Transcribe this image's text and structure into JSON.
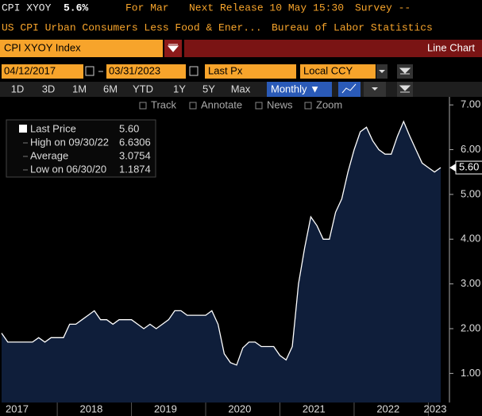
{
  "header": {
    "ticker": "CPI XYOY",
    "last": "5.6%",
    "period": "For Mar",
    "next_release": "Next Release 10 May 15:30",
    "survey": "Survey --",
    "description": "US CPI Urban Consumers Less Food & Ener...",
    "source": "Bureau of Labor Statistics"
  },
  "security": "CPI XYOY Index",
  "view": "Line Chart",
  "controls": {
    "start_date": "04/12/2017",
    "end_date": "03/31/2023",
    "field": "Last Px",
    "currency": "Local CCY",
    "ranges": [
      "1D",
      "3D",
      "1M",
      "6M",
      "YTD",
      "1Y",
      "5Y",
      "Max"
    ],
    "frequency": "Monthly ▼",
    "tools": [
      "Track",
      "Annotate",
      "News",
      "Zoom"
    ]
  },
  "legend_rows": [
    {
      "label": "High on 09/30/22",
      "value": "6.6306"
    },
    {
      "label": "Average",
      "value": "3.0754"
    },
    {
      "label": "Low on 06/30/20",
      "value": "1.1874"
    }
  ],
  "last_value_label": "5.60",
  "chart_data": {
    "type": "area",
    "series": [
      {
        "name": "Last Price",
        "color": "#ffffff",
        "fill": "#0f1e3a",
        "values": [
          1.9,
          1.7,
          1.7,
          1.7,
          1.7,
          1.7,
          1.8,
          1.7,
          1.8,
          1.8,
          1.8,
          2.1,
          2.1,
          2.2,
          2.3,
          2.4,
          2.2,
          2.2,
          2.1,
          2.2,
          2.2,
          2.2,
          2.1,
          2.0,
          2.1,
          2.0,
          2.1,
          2.2,
          2.4,
          2.4,
          2.3,
          2.3,
          2.3,
          2.3,
          2.4,
          2.1,
          1.44,
          1.24,
          1.1874,
          1.57,
          1.7,
          1.7,
          1.6,
          1.6,
          1.6,
          1.4,
          1.3,
          1.6,
          3.0,
          3.8,
          4.5,
          4.3,
          4.0,
          4.0,
          4.6,
          4.9,
          5.5,
          6.0,
          6.4,
          6.5,
          6.2,
          6.0,
          5.9,
          5.9,
          6.3,
          6.6306,
          6.3,
          6.0,
          5.7,
          5.6,
          5.5,
          5.6
        ]
      }
    ],
    "xticks": [
      2017,
      2018,
      2019,
      2020,
      2021,
      2022,
      2023
    ],
    "ylim": [
      0.35,
      7.18
    ],
    "yticks": [
      {
        "value": 1,
        "label": "1.00"
      },
      {
        "value": 2,
        "label": "2.00"
      },
      {
        "value": 3,
        "label": "3.00"
      },
      {
        "value": 4,
        "label": "4.00"
      },
      {
        "value": 5,
        "label": "5.00"
      },
      {
        "value": 6,
        "label": "6.00"
      },
      {
        "value": 7,
        "label": "7.00"
      }
    ]
  }
}
